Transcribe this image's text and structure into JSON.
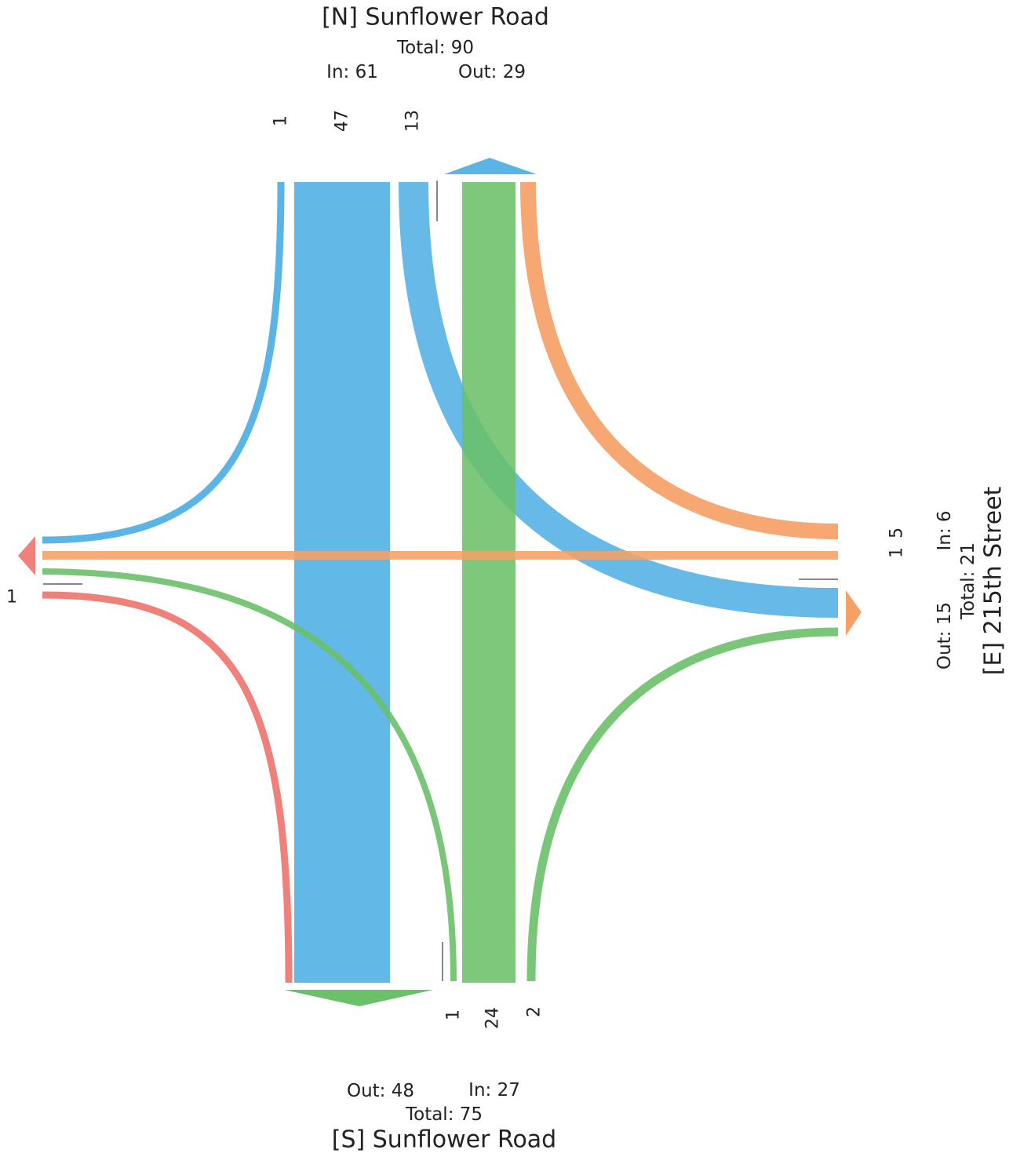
{
  "north": {
    "title": "[N] Sunflower Road",
    "total": "Total: 90",
    "in": "In: 61",
    "out": "Out: 29",
    "lanes": [
      "1",
      "47",
      "13"
    ]
  },
  "south": {
    "title": "[S] Sunflower Road",
    "total": "Total: 75",
    "in": "In: 27",
    "out": "Out: 48",
    "lanes": [
      "1",
      "24",
      "2"
    ]
  },
  "east": {
    "title": "[E] 215th Street",
    "total": "Total: 21",
    "in": "In: 6",
    "out": "Out: 15",
    "lanes": [
      "5",
      "1"
    ]
  },
  "west": {
    "lanes": [
      "1"
    ]
  },
  "colors": {
    "north": "#5ab4e5",
    "south": "#6cc06a",
    "east": "#f5a066",
    "west": "#f0807a"
  },
  "flows": [
    {
      "from": "north",
      "to": "west",
      "volume": 1,
      "color": "north"
    },
    {
      "from": "north",
      "to": "south",
      "volume": 47,
      "color": "north"
    },
    {
      "from": "north",
      "to": "east",
      "volume": 13,
      "color": "north"
    },
    {
      "from": "south",
      "to": "west",
      "volume": 1,
      "color": "south"
    },
    {
      "from": "south",
      "to": "north",
      "volume": 24,
      "color": "south"
    },
    {
      "from": "south",
      "to": "east",
      "volume": 2,
      "color": "south"
    },
    {
      "from": "east",
      "to": "north",
      "volume": 5,
      "color": "east"
    },
    {
      "from": "east",
      "to": "west",
      "volume": 1,
      "color": "east"
    },
    {
      "from": "west",
      "to": "south",
      "volume": 1,
      "color": "west"
    }
  ]
}
